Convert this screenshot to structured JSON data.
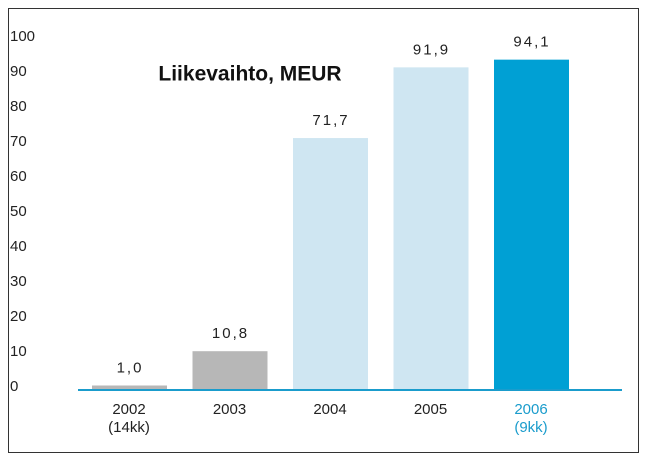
{
  "chart_data": {
    "type": "bar",
    "title": "Liikevaihto, MEUR",
    "categories": [
      "2002",
      "2003",
      "2004",
      "2005",
      "2006"
    ],
    "sublabels": [
      "(14kk)",
      null,
      null,
      null,
      "(9kk)"
    ],
    "values": [
      1.0,
      10.8,
      71.7,
      91.9,
      94.1
    ],
    "value_labels": [
      "1,0",
      "10,8",
      "71,7",
      "91,9",
      "94,1"
    ],
    "colors": [
      "#b7b7b7",
      "#b7b7b7",
      "#cfe6f2",
      "#cfe6f2",
      "#00a0d4"
    ],
    "label_colors": [
      "#222222",
      "#222222",
      "#222222",
      "#222222",
      "#1a9ccc"
    ],
    "ylim": [
      0,
      100
    ],
    "yticks": [
      0,
      10,
      20,
      30,
      40,
      50,
      60,
      70,
      80,
      90,
      100
    ],
    "grid": false
  }
}
